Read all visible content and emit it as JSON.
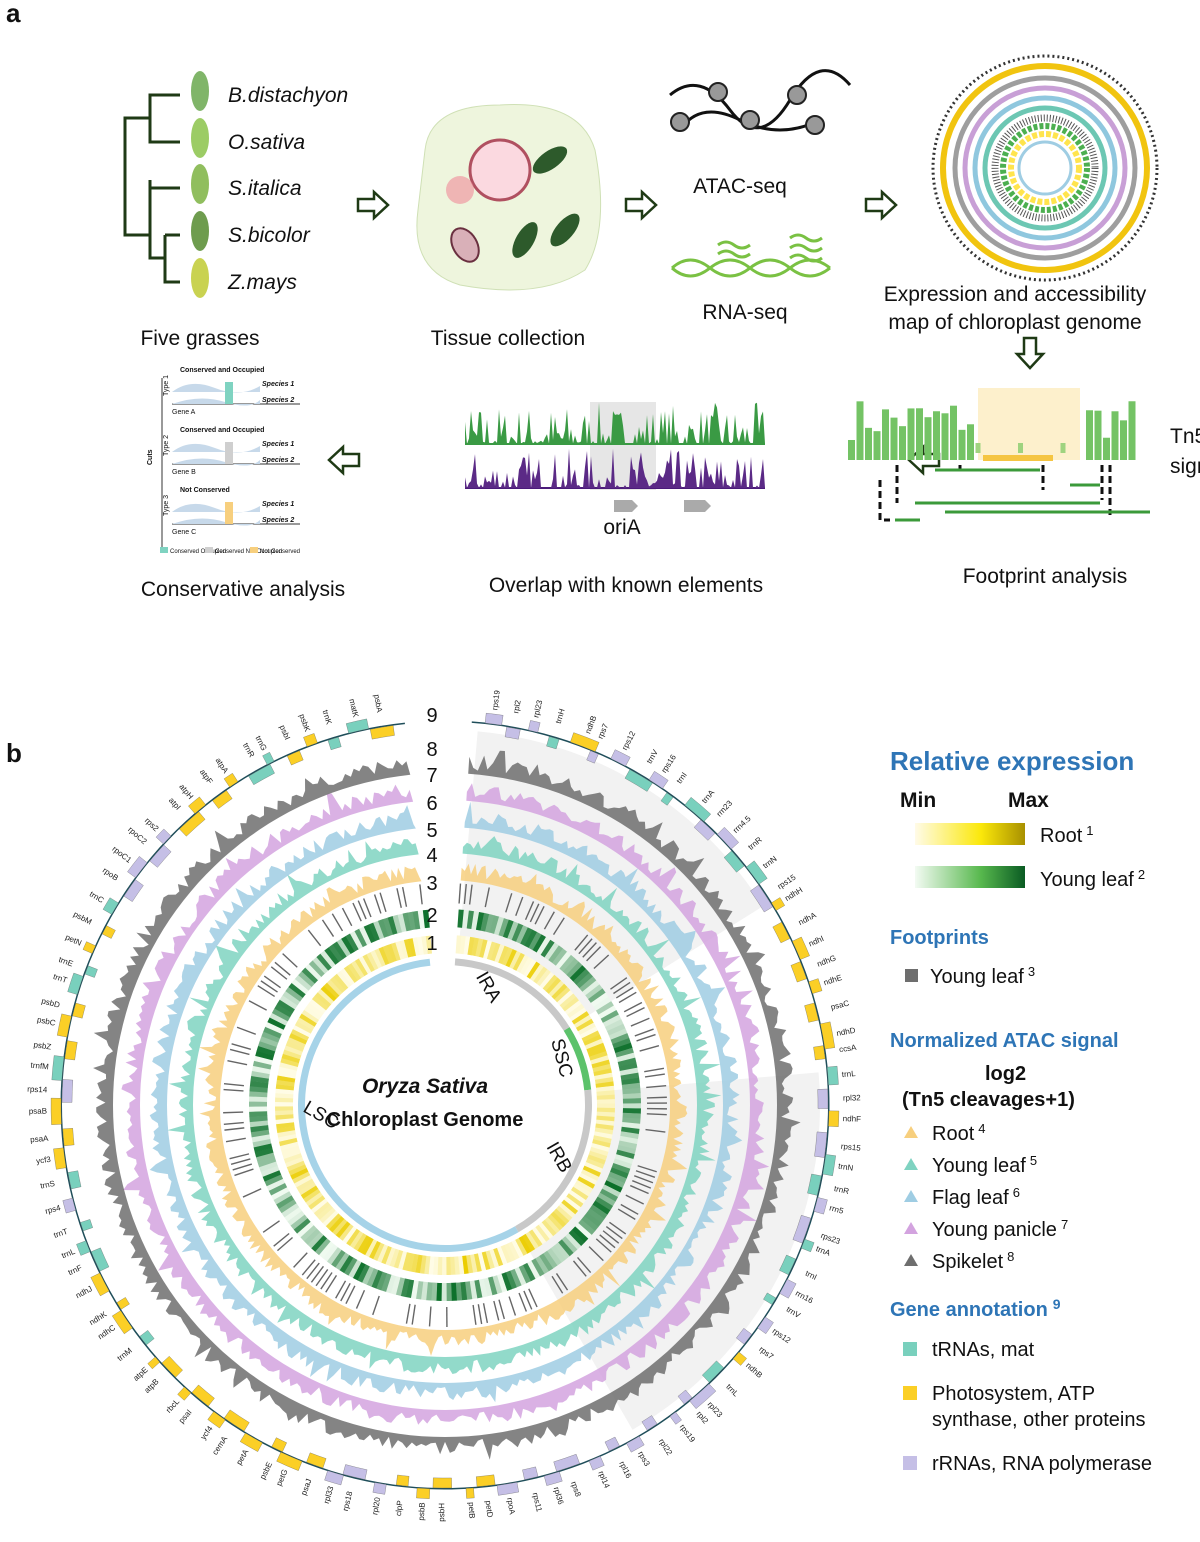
{
  "panel_a": {
    "label": "a",
    "species": [
      "B.distachyon",
      "O.sativa",
      "S.italica",
      "S.bicolor",
      "Z.mays"
    ],
    "five_grasses": "Five grasses",
    "tissue": "Tissue collection",
    "atac": "ATAC-seq",
    "rna": "RNA-seq",
    "map_lines": [
      "Expression and accessibility",
      "map of chloroplast genome"
    ],
    "tn5": [
      "Tn5",
      "signal"
    ],
    "footprint": "Footprint analysis",
    "oria": "oriA",
    "overlap": "Overlap with  known elements",
    "conservative": "Conservative analysis",
    "mini": {
      "headers": [
        "Conserved and Occupied",
        "Conserved and Occupied",
        "Not Conserved"
      ],
      "species": [
        "Species 1",
        "Species 2"
      ],
      "types": [
        "Type 1",
        "Type 2",
        "Type 3"
      ],
      "genes": [
        "Gene A",
        "Gene B",
        "Gene C"
      ],
      "cuts": "Cuts",
      "legend": [
        "Conserved Occupied",
        "Conserved Not Occupied",
        "Not Conserved"
      ]
    }
  },
  "panel_b": {
    "label": "b",
    "ring_numbers": [
      "1",
      "2",
      "3",
      "4",
      "5",
      "6",
      "7",
      "8",
      "9"
    ],
    "center": [
      "Oryza Sativa",
      "Chloroplast Genome"
    ],
    "regions": [
      "LSC",
      "IRA",
      "SSC",
      "IRB"
    ],
    "genes": [
      "rps19",
      "rpl2",
      "rpl23",
      "trnH",
      "ndhB",
      "rps7",
      "rps12",
      "trnV",
      "rps16",
      "trnI",
      "trnA",
      "rrn23",
      "rrn4.5",
      "trnR",
      "trnN",
      "rps15",
      "ndhH",
      "ndhA",
      "ndhI",
      "ndhG",
      "ndhE",
      "psaC",
      "ndhD",
      "ccsA",
      "trnL",
      "rpl32",
      "ndhF",
      "rps15",
      "trnN",
      "trnR",
      "rrn5",
      "rps23",
      "trnA",
      "trnI",
      "rrn16",
      "trnV",
      "rps12",
      "rps7",
      "ndhB",
      "trnL",
      "rpl23",
      "rpl2",
      "rps19",
      "rpl22",
      "rps3",
      "rpl16",
      "rpl14",
      "rps8",
      "rpl36",
      "rps11",
      "rpoA",
      "petD",
      "petB",
      "psbH",
      "psbB",
      "clpP",
      "rpl20",
      "rps18",
      "rpl33",
      "psaJ",
      "petG",
      "psbE",
      "petA",
      "cemA",
      "ycf4",
      "psaI",
      "rbcL",
      "atpB",
      "atpE",
      "trnM",
      "ndhC",
      "ndhK",
      "ndhJ",
      "trnF",
      "trnL",
      "trnT",
      "rps4",
      "trnS",
      "ycf3",
      "psaA",
      "psaB",
      "rps14",
      "trnfM",
      "psbZ",
      "psbC",
      "psbD",
      "trnT",
      "trnE",
      "petN",
      "psbM",
      "trnC",
      "rpoB",
      "rpoC1",
      "rpoC2",
      "rps2",
      "atpI",
      "atpH",
      "atpF",
      "atpA",
      "trnR",
      "trnG",
      "psbI",
      "psbK",
      "trnK",
      "matK",
      "psbA"
    ],
    "legend": {
      "relative_expression": "Relative expression",
      "min": "Min",
      "max": "Max",
      "expr_items": [
        {
          "label": "Root",
          "sup": "1"
        },
        {
          "label": "Young leaf",
          "sup": "2"
        }
      ],
      "footprints": "Footprints",
      "fp_item": {
        "label": "Young leaf",
        "sup": "3"
      },
      "atac_title": "Normalized ATAC signal",
      "atac_sub": [
        "log2",
        "(Tn5 cleavages+1)"
      ],
      "atac_items": [
        {
          "label": "Root",
          "sup": "4",
          "color": "#f7cf7e"
        },
        {
          "label": "Young leaf",
          "sup": "5",
          "color": "#7fd3c1"
        },
        {
          "label": "Flag leaf",
          "sup": "6",
          "color": "#9fcde3"
        },
        {
          "label": "Young panicle",
          "sup": "7",
          "color": "#d3a3df"
        },
        {
          "label": "Spikelet",
          "sup": "8",
          "color": "#6e6e6e"
        }
      ],
      "gene_title": "Gene annotation",
      "gene_sup": "9",
      "gene_items": [
        {
          "label": [
            "tRNAs, mat"
          ],
          "color": "#79d0bd"
        },
        {
          "label": [
            "Photosystem, ATP",
            "synthase, other proteins"
          ],
          "color": "#fbcf26"
        },
        {
          "label": [
            "rRNAs, RNA polymerase"
          ],
          "color": "#c5bfe6"
        }
      ]
    }
  }
}
